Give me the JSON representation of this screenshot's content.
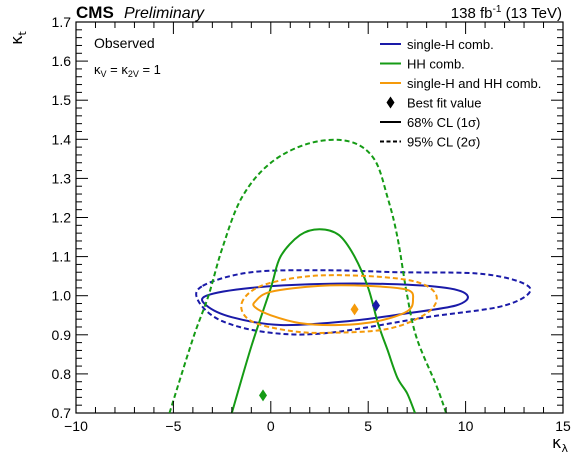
{
  "header": {
    "cms": "CMS",
    "preliminary": "Preliminary",
    "lumi_value": "138 fb",
    "lumi_exp": "-1",
    "energy": " (13 TeV)"
  },
  "annotations": {
    "observed": "Observed",
    "kappa_constraint": "κ_V = κ_2V = 1"
  },
  "colors": {
    "single_h": "#1a1aa8",
    "hh": "#159b15",
    "combined": "#f59a0a",
    "best_fit_text": "#000000"
  },
  "chart_data": {
    "type": "line",
    "xlabel": "κ_λ",
    "ylabel": "κ_t",
    "xlim": [
      -10,
      15
    ],
    "ylim": [
      0.7,
      1.7
    ],
    "x_ticks": [
      -10,
      -5,
      0,
      5,
      10,
      15
    ],
    "x_tick_labels": [
      "−10",
      "−5",
      "0",
      "5",
      "10",
      "15"
    ],
    "y_ticks": [
      0.7,
      0.8,
      0.9,
      1.0,
      1.1,
      1.2,
      1.3,
      1.4,
      1.5,
      1.6,
      1.7
    ],
    "y_tick_labels": [
      "0.7",
      "0.8",
      "0.9",
      "1.0",
      "1.1",
      "1.2",
      "1.3",
      "1.4",
      "1.5",
      "1.6",
      "1.7"
    ],
    "grid": false,
    "legend_position": "top-right",
    "legend": [
      {
        "label": "single-H comb.",
        "kind": "line",
        "color": "#1a1aa8"
      },
      {
        "label": "HH comb.",
        "kind": "line",
        "color": "#159b15"
      },
      {
        "label": "single-H and HH comb.",
        "kind": "line",
        "color": "#f59a0a"
      },
      {
        "label": "Best fit value",
        "kind": "diamond",
        "color": "#000000"
      },
      {
        "label": "68% CL (1σ)",
        "kind": "solid",
        "color": "#000000"
      },
      {
        "label": "95% CL (2σ)",
        "kind": "dashed",
        "color": "#000000"
      }
    ],
    "series": [
      {
        "name": "single-H comb.",
        "level": "68% CL",
        "closed": true,
        "color": "#1a1aa8",
        "dashed": false,
        "points": [
          [
            -3.3,
            1.0
          ],
          [
            -1.0,
            1.02
          ],
          [
            2.5,
            1.03
          ],
          [
            6.0,
            1.03
          ],
          [
            9.0,
            1.02
          ],
          [
            10.1,
            1.0
          ],
          [
            9.5,
            0.975
          ],
          [
            7.0,
            0.955
          ],
          [
            4.0,
            0.935
          ],
          [
            0.5,
            0.925
          ],
          [
            -2.0,
            0.945
          ],
          [
            -3.3,
            0.975
          ],
          [
            -3.3,
            1.0
          ]
        ]
      },
      {
        "name": "single-H comb.",
        "level": "95% CL",
        "closed": true,
        "color": "#1a1aa8",
        "dashed": true,
        "points": [
          [
            -3.5,
            1.025
          ],
          [
            -1.0,
            1.06
          ],
          [
            3.0,
            1.065
          ],
          [
            6.5,
            1.06
          ],
          [
            11.0,
            1.055
          ],
          [
            13.3,
            1.02
          ],
          [
            12.0,
            0.975
          ],
          [
            8.0,
            0.945
          ],
          [
            3.0,
            0.905
          ],
          [
            0.0,
            0.905
          ],
          [
            -2.5,
            0.935
          ],
          [
            -3.7,
            0.985
          ],
          [
            -3.5,
            1.025
          ]
        ]
      },
      {
        "name": "HH comb.",
        "level": "68% CL",
        "closed": false,
        "color": "#159b15",
        "dashed": false,
        "points": [
          [
            -2.0,
            0.7
          ],
          [
            -1.0,
            0.87
          ],
          [
            0.0,
            1.02
          ],
          [
            0.5,
            1.1
          ],
          [
            1.5,
            1.155
          ],
          [
            2.5,
            1.17
          ],
          [
            3.5,
            1.155
          ],
          [
            4.3,
            1.1
          ],
          [
            5.0,
            1.02
          ],
          [
            5.5,
            0.93
          ],
          [
            6.0,
            0.86
          ],
          [
            6.5,
            0.79
          ],
          [
            7.0,
            0.75
          ],
          [
            7.4,
            0.7
          ]
        ]
      },
      {
        "name": "HH comb.",
        "level": "95% CL",
        "closed": false,
        "color": "#159b15",
        "dashed": true,
        "points": [
          [
            -5.2,
            0.7
          ],
          [
            -4.0,
            0.89
          ],
          [
            -3.2,
            1.0
          ],
          [
            -2.5,
            1.12
          ],
          [
            -1.5,
            1.25
          ],
          [
            0.0,
            1.34
          ],
          [
            2.0,
            1.39
          ],
          [
            4.0,
            1.395
          ],
          [
            5.3,
            1.35
          ],
          [
            6.0,
            1.25
          ],
          [
            6.5,
            1.15
          ],
          [
            7.0,
            1.0
          ],
          [
            7.5,
            0.89
          ],
          [
            8.5,
            0.77
          ],
          [
            9.0,
            0.7
          ]
        ]
      },
      {
        "name": "single-H and HH comb.",
        "level": "68% CL",
        "closed": true,
        "color": "#f59a0a",
        "dashed": false,
        "points": [
          [
            -0.8,
            0.985
          ],
          [
            0.0,
            1.01
          ],
          [
            2.5,
            1.025
          ],
          [
            5.0,
            1.025
          ],
          [
            7.0,
            1.015
          ],
          [
            7.3,
            0.99
          ],
          [
            7.0,
            0.96
          ],
          [
            5.5,
            0.935
          ],
          [
            3.5,
            0.925
          ],
          [
            1.5,
            0.93
          ],
          [
            0.0,
            0.95
          ],
          [
            -0.8,
            0.97
          ],
          [
            -0.8,
            0.985
          ]
        ]
      },
      {
        "name": "single-H and HH comb.",
        "level": "95% CL",
        "closed": true,
        "color": "#f59a0a",
        "dashed": true,
        "points": [
          [
            -1.5,
            0.98
          ],
          [
            -0.5,
            1.025
          ],
          [
            2.0,
            1.05
          ],
          [
            5.0,
            1.05
          ],
          [
            7.5,
            1.035
          ],
          [
            8.5,
            1.0
          ],
          [
            8.0,
            0.955
          ],
          [
            6.0,
            0.915
          ],
          [
            3.0,
            0.905
          ],
          [
            1.0,
            0.91
          ],
          [
            -1.0,
            0.935
          ],
          [
            -1.5,
            0.98
          ]
        ]
      }
    ],
    "best_fit": [
      {
        "name": "single-H comb.",
        "x": 5.4,
        "y": 0.975,
        "color": "#1a1aa8"
      },
      {
        "name": "HH comb.",
        "x": -0.4,
        "y": 0.745,
        "color": "#159b15"
      },
      {
        "name": "single-H and HH comb.",
        "x": 4.3,
        "y": 0.965,
        "color": "#f59a0a"
      }
    ]
  }
}
